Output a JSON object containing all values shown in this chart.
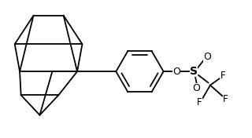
{
  "background": "#ffffff",
  "line_color": "#000000",
  "lw": 1.3,
  "fs": 8.5,
  "figsize": [
    3.2,
    1.76
  ],
  "dpi": 100,
  "xlim": [
    0,
    10
  ],
  "ylim": [
    0,
    5.5
  ]
}
